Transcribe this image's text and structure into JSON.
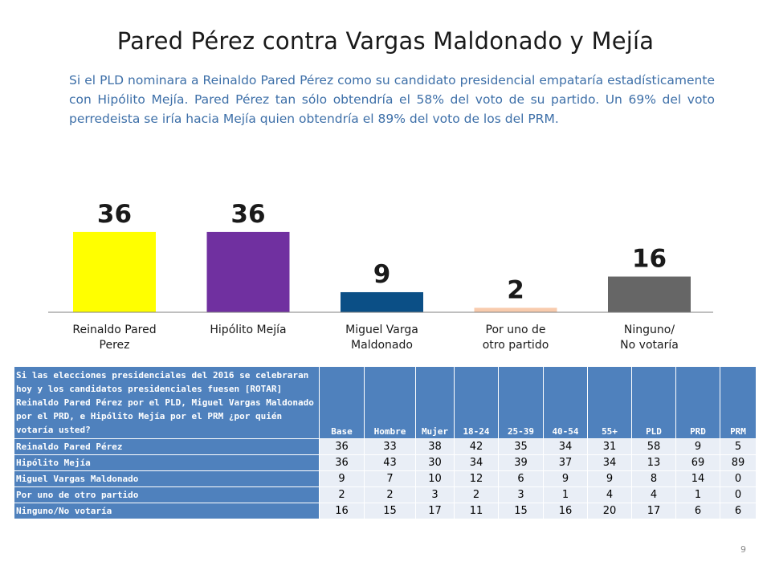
{
  "title": "Pared Pérez contra Vargas Maldonado y Mejía",
  "subtitle": "Si el PLD nominara a Reinaldo Pared Pérez como su candidato presidencial empataría estadísticamente con Hipólito Mejía. Pared Pérez tan sólo obtendría el 58% del voto de su partido. Un 69% del voto perredeista se iría hacia Mejía quien obtendría el 89% del voto de los del PRM.",
  "chart_data": {
    "type": "bar",
    "categories": [
      [
        "Reinaldo Pared",
        "Perez"
      ],
      [
        "Hipólito Mejía"
      ],
      [
        "Miguel Varga",
        "Maldonado"
      ],
      [
        "Por uno de",
        "otro partido"
      ],
      [
        "Ninguno/",
        "No votaría"
      ]
    ],
    "values": [
      36,
      36,
      9,
      2,
      16
    ],
    "colors": [
      "#ffff00",
      "#7030a0",
      "#0b4f86",
      "#f8cbad",
      "#666666"
    ],
    "ylim": [
      0,
      40
    ],
    "grid": false,
    "legend": "none"
  },
  "table": {
    "question": "Si las elecciones presidenciales del 2016 se celebraran hoy y los candidatos presidenciales fuesen [ROTAR] Reinaldo Pared Pérez por el PLD, Miguel Vargas Maldonado por el PRD, e Hipólito Mejía por el PRM ¿por quién votaría usted?",
    "columns": [
      "Base",
      "Hombre",
      "Mujer",
      "18-24",
      "25-39",
      "40-54",
      "55+",
      "PLD",
      "PRD",
      "PRM"
    ],
    "rows": [
      {
        "label": "Reinaldo Pared Pérez",
        "values": [
          "36",
          "33",
          "38",
          "42",
          "35",
          "34",
          "31",
          "58",
          "9",
          "5"
        ]
      },
      {
        "label": "Hipólito Mejía",
        "values": [
          "36",
          "43",
          "30",
          "34",
          "39",
          "37",
          "34",
          "13",
          "69",
          "89"
        ]
      },
      {
        "label": "Miguel Vargas Maldonado",
        "values": [
          "9",
          "7",
          "10",
          "12",
          "6",
          "9",
          "9",
          "8",
          "14",
          "0"
        ]
      },
      {
        "label": "Por uno de otro partido",
        "values": [
          "2",
          "2",
          "3",
          "2",
          "3",
          "1",
          "4",
          "4",
          "1",
          "0"
        ]
      },
      {
        "label": "Ninguno/No votaría",
        "values": [
          "16",
          "15",
          "17",
          "11",
          "15",
          "16",
          "20",
          "17",
          "6",
          "6"
        ]
      }
    ]
  },
  "page_number": "9"
}
